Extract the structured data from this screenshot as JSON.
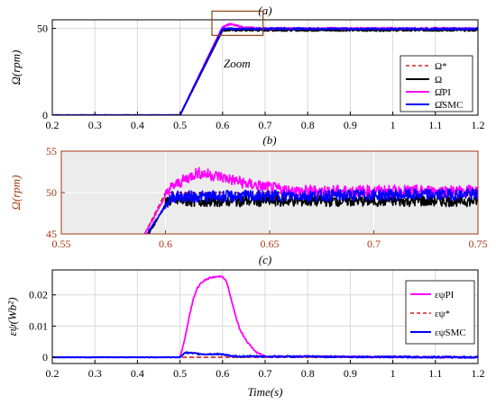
{
  "chart_data": [
    {
      "type": "line",
      "title": "(a)",
      "xlabel": "",
      "ylabel": "Ω(rpm)",
      "xlim": [
        0.2,
        1.2
      ],
      "ylim": [
        0,
        55
      ],
      "xticks": [
        "0.2",
        "0.3",
        "0.4",
        "0.5",
        "0.6",
        "0.7",
        "0.8",
        "0.9",
        "1",
        "1.1",
        "1.2"
      ],
      "yticks": [
        "0",
        "50"
      ],
      "grid": true,
      "legend_position": "bottom-right",
      "annotation": "Zoom",
      "zoom_box": {
        "x": [
          0.575,
          0.695
        ],
        "y": [
          46,
          60
        ]
      },
      "series": [
        {
          "name": "Ω*",
          "color": "#d42020",
          "dash": true,
          "points": [
            [
              0.2,
              0
            ],
            [
              0.5,
              0
            ],
            [
              0.6,
              50
            ],
            [
              1.2,
              50
            ]
          ]
        },
        {
          "name": "Ω",
          "color": "#000000",
          "points": [
            [
              0.2,
              0
            ],
            [
              0.5,
              0
            ],
            [
              0.6,
              49
            ],
            [
              1.2,
              49
            ]
          ]
        },
        {
          "name": "Ω̂PI",
          "color": "#ff00ff",
          "points": [
            [
              0.2,
              0
            ],
            [
              0.5,
              0
            ],
            [
              0.6,
              51
            ],
            [
              0.617,
              52.5
            ],
            [
              0.65,
              50.5
            ],
            [
              0.7,
              50
            ],
            [
              1.2,
              50
            ]
          ]
        },
        {
          "name": "Ω̂SMC",
          "color": "#0000ff",
          "points": [
            [
              0.2,
              0
            ],
            [
              0.5,
              0
            ],
            [
              0.6,
              49.8
            ],
            [
              1.2,
              49.8
            ]
          ]
        }
      ]
    },
    {
      "type": "line",
      "title": "(b)",
      "xlabel": "",
      "ylabel": "Ω(rpm)",
      "xlim": [
        0.55,
        0.75
      ],
      "ylim": [
        45,
        55
      ],
      "xticks": [
        "0.55",
        "0.6",
        "0.65",
        "0.7",
        "0.75"
      ],
      "yticks": [
        "45",
        "50",
        "55"
      ],
      "grid": true,
      "background": "#ececec",
      "series": [
        {
          "name": "Ω*",
          "color": "#d42020",
          "dash": true,
          "points": [
            [
              0.59,
              45
            ],
            [
              0.6,
              50
            ],
            [
              0.75,
              50
            ]
          ]
        },
        {
          "name": "Ω",
          "color": "#000000",
          "points": [
            [
              0.592,
              45
            ],
            [
              0.601,
              49
            ],
            [
              0.75,
              49
            ]
          ]
        },
        {
          "name": "Ω̂PI",
          "color": "#ff00ff",
          "points": [
            [
              0.59,
              45
            ],
            [
              0.602,
              50.5
            ],
            [
              0.615,
              52.4
            ],
            [
              0.625,
              52
            ],
            [
              0.64,
              51
            ],
            [
              0.66,
              50.2
            ],
            [
              0.75,
              50.2
            ]
          ]
        },
        {
          "name": "Ω̂SMC",
          "color": "#0000ff",
          "points": [
            [
              0.591,
              45
            ],
            [
              0.603,
              49.5
            ],
            [
              0.75,
              49.8
            ]
          ]
        }
      ]
    },
    {
      "type": "line",
      "title": "(c)",
      "xlabel": "Time(s)",
      "ylabel": "εψ(Wb²)",
      "xlim": [
        0.2,
        1.2
      ],
      "ylim": [
        -0.002,
        0.028
      ],
      "xticks": [
        "0.2",
        "0.3",
        "0.4",
        "0.5",
        "0.6",
        "0.7",
        "0.8",
        "0.9",
        "1",
        "1.1",
        "1.2"
      ],
      "yticks": [
        "0",
        "0.01",
        "0.02"
      ],
      "grid": true,
      "legend_position": "right",
      "series": [
        {
          "name": "εψPI",
          "color": "#ff00ff",
          "points": [
            [
              0.2,
              0
            ],
            [
              0.5,
              0
            ],
            [
              0.51,
              0.005
            ],
            [
              0.52,
              0.012
            ],
            [
              0.53,
              0.018
            ],
            [
              0.54,
              0.022
            ],
            [
              0.55,
              0.024
            ],
            [
              0.57,
              0.0255
            ],
            [
              0.6,
              0.026
            ],
            [
              0.61,
              0.024
            ],
            [
              0.625,
              0.016
            ],
            [
              0.64,
              0.009
            ],
            [
              0.66,
              0.0045
            ],
            [
              0.68,
              0.0015
            ],
            [
              0.7,
              0.0003
            ],
            [
              1.2,
              0
            ]
          ]
        },
        {
          "name": "εψ*",
          "color": "#d42020",
          "dash": true,
          "points": [
            [
              0.2,
              0
            ],
            [
              1.2,
              0
            ]
          ]
        },
        {
          "name": "εψSMC",
          "color": "#0000ff",
          "points": [
            [
              0.2,
              0
            ],
            [
              0.5,
              0
            ],
            [
              0.51,
              0.0015
            ],
            [
              0.55,
              0.001
            ],
            [
              0.6,
              0.001
            ],
            [
              0.62,
              0.0003
            ],
            [
              1.2,
              0
            ]
          ]
        }
      ]
    }
  ]
}
